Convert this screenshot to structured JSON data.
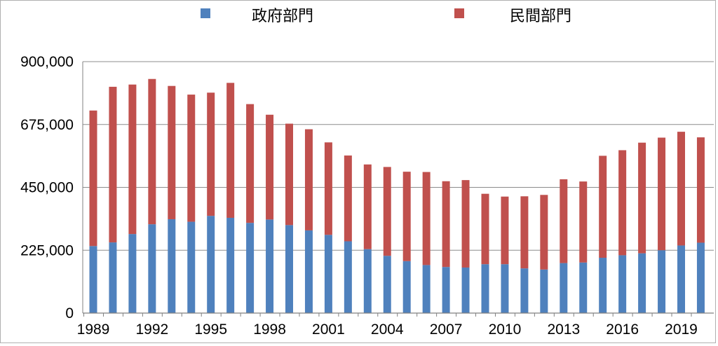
{
  "chart_data": {
    "type": "bar",
    "stacked": true,
    "title": "",
    "xlabel": "",
    "ylabel": "",
    "ylim": [
      0,
      900000
    ],
    "yticks": [
      "0",
      "225,000",
      "450,000",
      "675,000",
      "900,000"
    ],
    "ytick_values": [
      0,
      225000,
      450000,
      675000,
      900000
    ],
    "x_tick_labels": [
      "1989",
      "1992",
      "1995",
      "1998",
      "2001",
      "2004",
      "2007",
      "2010",
      "2013",
      "2016",
      "2019"
    ],
    "grid": "horizontal",
    "legend_position": "top",
    "categories": [
      1989,
      1990,
      1991,
      1992,
      1993,
      1994,
      1995,
      1996,
      1997,
      1998,
      1999,
      2000,
      2001,
      2002,
      2003,
      2004,
      2005,
      2006,
      2007,
      2008,
      2009,
      2010,
      2011,
      2012,
      2013,
      2014,
      2015,
      2016,
      2017,
      2018,
      2019,
      2020
    ],
    "series": [
      {
        "name": "政府部門",
        "color": "#4f81bd",
        "values": [
          240000,
          253000,
          283000,
          318000,
          336000,
          327000,
          348000,
          341000,
          323000,
          335000,
          315000,
          296000,
          280000,
          257000,
          229000,
          205000,
          186000,
          172000,
          165000,
          163000,
          175000,
          175000,
          160000,
          156000,
          179000,
          181000,
          198000,
          207000,
          214000,
          225000,
          242000,
          252000
        ]
      },
      {
        "name": "民間部門",
        "color": "#c0504d",
        "values": [
          485000,
          557000,
          535000,
          520000,
          477000,
          455000,
          441000,
          483000,
          425000,
          375000,
          363000,
          362000,
          331000,
          307000,
          303000,
          318000,
          320000,
          333000,
          307000,
          313000,
          252000,
          242000,
          258000,
          267000,
          300000,
          290000,
          365000,
          376000,
          396000,
          403000,
          407000,
          377000
        ]
      }
    ]
  }
}
